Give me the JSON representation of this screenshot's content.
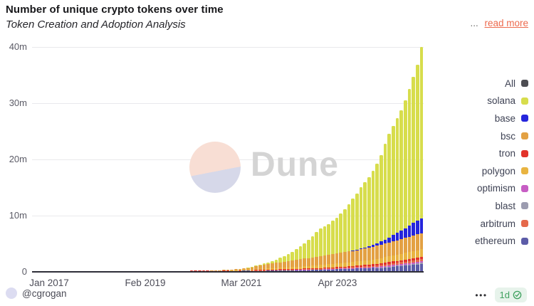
{
  "header": {
    "title": "Number of unique crypto tokens over time",
    "subtitle": "Token Creation and Adoption Analysis",
    "truncation_dots": "...",
    "read_more_label": "read more"
  },
  "watermark": {
    "brand": "Dune"
  },
  "footer": {
    "author": "@cgrogan",
    "menu_dots": "•••",
    "freshness_label": "1d"
  },
  "colors": {
    "read_more": "#ed6a4d",
    "badge_bg": "#e7f3eb",
    "badge_green": "#3fa15f",
    "gridline": "#e9e9ec",
    "baseline": "#2e2e38",
    "axis_label": "#5b5b66",
    "legend_text": "#3e4254",
    "watermark_gray": "#d4d4d4"
  },
  "chart_data": {
    "type": "bar",
    "stacked": true,
    "title": "Number of unique crypto tokens over time",
    "subtitle": "Token Creation and Adoption Analysis",
    "x_unit": "month",
    "x_start": "Jan 2017",
    "x_end": "Jan 2025",
    "x_tick_labels": [
      "Jan 2017",
      "Feb 2019",
      "Mar 2021",
      "Apr 2023"
    ],
    "y_ticks": [
      {
        "value": 0,
        "label": "0"
      },
      {
        "value": 10,
        "label": "10m"
      },
      {
        "value": 20,
        "label": "20m"
      },
      {
        "value": 30,
        "label": "30m"
      },
      {
        "value": 40,
        "label": "40m"
      }
    ],
    "ylim_millions": [
      0,
      40
    ],
    "grid": true,
    "legend_position": "right",
    "legend": [
      {
        "label": "All",
        "color": "#4d4d52"
      },
      {
        "label": "solana",
        "color": "#d7dd4c"
      },
      {
        "label": "base",
        "color": "#2525dc"
      },
      {
        "label": "bsc",
        "color": "#e3a143"
      },
      {
        "label": "tron",
        "color": "#e2332a"
      },
      {
        "label": "polygon",
        "color": "#e9b441"
      },
      {
        "label": "optimism",
        "color": "#c75dc4"
      },
      {
        "label": "blast",
        "color": "#9c9cb0"
      },
      {
        "label": "arbitrum",
        "color": "#e5694b"
      },
      {
        "label": "ethereum",
        "color": "#5c5ca8"
      }
    ],
    "series_note": "cumulative unique tokens in millions, monthly Jan 2017 - Jan 2025, listed bottom-to-top of stack",
    "series": [
      {
        "name": "ethereum",
        "color": "#5c5ca8",
        "values": [
          0.01,
          0.01,
          0.02,
          0.02,
          0.02,
          0.03,
          0.03,
          0.03,
          0.04,
          0.04,
          0.05,
          0.05,
          0.06,
          0.06,
          0.07,
          0.07,
          0.07,
          0.08,
          0.08,
          0.08,
          0.09,
          0.09,
          0.1,
          0.1,
          0.1,
          0.11,
          0.11,
          0.11,
          0.12,
          0.12,
          0.12,
          0.13,
          0.13,
          0.14,
          0.14,
          0.15,
          0.15,
          0.16,
          0.16,
          0.17,
          0.17,
          0.18,
          0.18,
          0.19,
          0.2,
          0.2,
          0.21,
          0.22,
          0.23,
          0.23,
          0.24,
          0.25,
          0.26,
          0.26,
          0.27,
          0.28,
          0.28,
          0.29,
          0.3,
          0.31,
          0.32,
          0.33,
          0.34,
          0.35,
          0.36,
          0.37,
          0.38,
          0.39,
          0.4,
          0.41,
          0.42,
          0.43,
          0.45,
          0.46,
          0.48,
          0.5,
          0.52,
          0.54,
          0.56,
          0.58,
          0.6,
          0.62,
          0.65,
          0.67,
          0.7,
          0.74,
          0.78,
          0.83,
          0.88,
          0.93,
          0.99,
          1.05,
          1.11,
          1.18,
          1.25,
          1.33,
          1.4
        ]
      },
      {
        "name": "blast",
        "color": "#9c9cb0",
        "values": [
          0,
          0,
          0,
          0,
          0,
          0,
          0,
          0,
          0,
          0,
          0,
          0,
          0,
          0,
          0,
          0,
          0,
          0,
          0,
          0,
          0,
          0,
          0,
          0,
          0,
          0,
          0,
          0,
          0,
          0,
          0,
          0,
          0,
          0,
          0,
          0,
          0,
          0,
          0,
          0,
          0,
          0,
          0,
          0,
          0,
          0,
          0,
          0,
          0,
          0,
          0,
          0,
          0,
          0,
          0,
          0,
          0,
          0,
          0,
          0,
          0,
          0,
          0,
          0,
          0,
          0,
          0,
          0,
          0,
          0,
          0,
          0,
          0,
          0,
          0,
          0,
          0,
          0,
          0,
          0,
          0,
          0,
          0,
          0,
          0,
          0.02,
          0.04,
          0.05,
          0.07,
          0.08,
          0.1,
          0.11,
          0.13,
          0.14,
          0.16,
          0.18,
          0.2
        ]
      },
      {
        "name": "optimism",
        "color": "#c75dc4",
        "values": [
          0,
          0,
          0,
          0,
          0,
          0,
          0,
          0,
          0,
          0,
          0,
          0,
          0,
          0,
          0,
          0,
          0,
          0,
          0,
          0,
          0,
          0,
          0,
          0,
          0,
          0,
          0,
          0,
          0,
          0,
          0,
          0,
          0,
          0,
          0,
          0,
          0,
          0,
          0,
          0,
          0,
          0,
          0,
          0,
          0,
          0,
          0,
          0,
          0,
          0,
          0,
          0,
          0,
          0,
          0,
          0,
          0,
          0,
          0,
          0,
          0.01,
          0.01,
          0.01,
          0.02,
          0.02,
          0.03,
          0.03,
          0.04,
          0.04,
          0.05,
          0.05,
          0.06,
          0.07,
          0.07,
          0.08,
          0.08,
          0.09,
          0.1,
          0.1,
          0.11,
          0.12,
          0.12,
          0.13,
          0.14,
          0.15,
          0.16,
          0.17,
          0.18,
          0.19,
          0.21,
          0.22,
          0.23,
          0.25,
          0.26,
          0.28,
          0.29,
          0.3
        ]
      },
      {
        "name": "arbitrum",
        "color": "#e5694b",
        "values": [
          0,
          0,
          0,
          0,
          0,
          0,
          0,
          0,
          0,
          0,
          0,
          0,
          0,
          0,
          0,
          0,
          0,
          0,
          0,
          0,
          0,
          0,
          0,
          0,
          0,
          0,
          0,
          0,
          0,
          0,
          0,
          0,
          0,
          0,
          0,
          0,
          0,
          0,
          0,
          0,
          0,
          0,
          0,
          0,
          0,
          0,
          0,
          0,
          0,
          0,
          0,
          0,
          0,
          0,
          0.01,
          0.01,
          0.02,
          0.02,
          0.02,
          0.03,
          0.03,
          0.04,
          0.04,
          0.04,
          0.05,
          0.05,
          0.05,
          0.06,
          0.06,
          0.07,
          0.07,
          0.08,
          0.09,
          0.1,
          0.11,
          0.11,
          0.12,
          0.13,
          0.14,
          0.15,
          0.16,
          0.17,
          0.18,
          0.19,
          0.21,
          0.23,
          0.25,
          0.26,
          0.28,
          0.3,
          0.31,
          0.33,
          0.34,
          0.36,
          0.37,
          0.39,
          0.4
        ]
      },
      {
        "name": "tron",
        "color": "#e2332a",
        "values": [
          0,
          0,
          0,
          0,
          0,
          0,
          0,
          0,
          0,
          0,
          0,
          0,
          0,
          0,
          0,
          0,
          0,
          0.01,
          0.01,
          0.01,
          0.01,
          0.01,
          0.01,
          0.01,
          0.01,
          0.01,
          0.01,
          0.02,
          0.02,
          0.02,
          0.02,
          0.02,
          0.02,
          0.02,
          0.02,
          0.02,
          0.03,
          0.03,
          0.03,
          0.03,
          0.03,
          0.03,
          0.04,
          0.04,
          0.04,
          0.04,
          0.04,
          0.04,
          0.05,
          0.05,
          0.05,
          0.05,
          0.06,
          0.06,
          0.06,
          0.06,
          0.07,
          0.07,
          0.07,
          0.07,
          0.08,
          0.08,
          0.09,
          0.09,
          0.1,
          0.1,
          0.1,
          0.11,
          0.11,
          0.11,
          0.12,
          0.12,
          0.13,
          0.14,
          0.15,
          0.16,
          0.17,
          0.18,
          0.19,
          0.21,
          0.22,
          0.23,
          0.25,
          0.26,
          0.28,
          0.29,
          0.3,
          0.31,
          0.32,
          0.33,
          0.34,
          0.35,
          0.36,
          0.37,
          0.38,
          0.39,
          0.4
        ]
      },
      {
        "name": "polygon",
        "color": "#e9b441",
        "values": [
          0,
          0,
          0,
          0,
          0,
          0,
          0,
          0,
          0,
          0,
          0,
          0,
          0,
          0,
          0,
          0,
          0,
          0,
          0,
          0,
          0,
          0,
          0,
          0,
          0,
          0,
          0,
          0,
          0,
          0,
          0,
          0,
          0,
          0,
          0,
          0,
          0,
          0,
          0,
          0,
          0,
          0,
          0,
          0,
          0,
          0,
          0,
          0,
          0,
          0.01,
          0.02,
          0.04,
          0.06,
          0.08,
          0.1,
          0.12,
          0.15,
          0.17,
          0.2,
          0.22,
          0.25,
          0.27,
          0.3,
          0.32,
          0.34,
          0.37,
          0.39,
          0.41,
          0.44,
          0.46,
          0.49,
          0.52,
          0.54,
          0.57,
          0.59,
          0.62,
          0.64,
          0.67,
          0.69,
          0.72,
          0.74,
          0.77,
          0.79,
          0.82,
          0.85,
          0.89,
          0.93,
          0.97,
          1.01,
          1.05,
          1.09,
          1.13,
          1.17,
          1.21,
          1.25,
          1.28,
          1.3
        ]
      },
      {
        "name": "bsc",
        "color": "#e3a143",
        "values": [
          0,
          0,
          0,
          0,
          0,
          0,
          0,
          0,
          0,
          0,
          0,
          0,
          0,
          0,
          0,
          0,
          0,
          0,
          0,
          0,
          0,
          0,
          0,
          0,
          0,
          0,
          0,
          0,
          0,
          0,
          0,
          0,
          0,
          0,
          0,
          0,
          0,
          0,
          0,
          0,
          0,
          0,
          0,
          0,
          0.01,
          0.02,
          0.04,
          0.06,
          0.09,
          0.12,
          0.16,
          0.22,
          0.3,
          0.38,
          0.46,
          0.54,
          0.62,
          0.7,
          0.78,
          0.85,
          0.92,
          0.98,
          1.04,
          1.1,
          1.16,
          1.22,
          1.28,
          1.34,
          1.4,
          1.46,
          1.52,
          1.58,
          1.64,
          1.7,
          1.76,
          1.82,
          1.88,
          1.93,
          1.98,
          2.03,
          2.08,
          2.13,
          2.18,
          2.23,
          2.28,
          2.33,
          2.38,
          2.43,
          2.48,
          2.53,
          2.58,
          2.63,
          2.68,
          2.74,
          2.8,
          2.85,
          2.9
        ]
      },
      {
        "name": "base",
        "color": "#2525dc",
        "values": [
          0,
          0,
          0,
          0,
          0,
          0,
          0,
          0,
          0,
          0,
          0,
          0,
          0,
          0,
          0,
          0,
          0,
          0,
          0,
          0,
          0,
          0,
          0,
          0,
          0,
          0,
          0,
          0,
          0,
          0,
          0,
          0,
          0,
          0,
          0,
          0,
          0,
          0,
          0,
          0,
          0,
          0,
          0,
          0,
          0,
          0,
          0,
          0,
          0,
          0,
          0,
          0,
          0,
          0,
          0,
          0,
          0,
          0,
          0,
          0,
          0,
          0,
          0,
          0,
          0,
          0,
          0,
          0,
          0,
          0,
          0,
          0,
          0,
          0,
          0,
          0,
          0,
          0,
          0,
          0.02,
          0.05,
          0.08,
          0.13,
          0.2,
          0.3,
          0.42,
          0.56,
          0.72,
          0.9,
          1.1,
          1.3,
          1.5,
          1.72,
          1.95,
          2.2,
          2.4,
          2.6
        ]
      },
      {
        "name": "solana",
        "color": "#d7dd4c",
        "values": [
          0,
          0,
          0,
          0,
          0,
          0,
          0,
          0,
          0,
          0,
          0,
          0,
          0,
          0,
          0,
          0,
          0,
          0,
          0,
          0,
          0,
          0,
          0,
          0,
          0,
          0,
          0,
          0,
          0,
          0,
          0,
          0,
          0,
          0,
          0,
          0,
          0,
          0,
          0,
          0,
          0,
          0,
          0,
          0,
          0,
          0,
          0,
          0,
          0,
          0,
          0,
          0,
          0,
          0.02,
          0.05,
          0.09,
          0.15,
          0.22,
          0.32,
          0.45,
          0.6,
          0.78,
          1.0,
          1.25,
          1.55,
          1.9,
          2.3,
          2.75,
          3.25,
          3.8,
          4.4,
          4.9,
          5.2,
          5.5,
          5.9,
          6.3,
          6.9,
          7.6,
          8.4,
          9.2,
          10.0,
          10.9,
          11.6,
          12.3,
          13.2,
          14.2,
          15.3,
          17.0,
          18.4,
          19.4,
          20.4,
          21.4,
          22.8,
          24.3,
          26.0,
          27.7,
          30.5
        ]
      }
    ]
  }
}
